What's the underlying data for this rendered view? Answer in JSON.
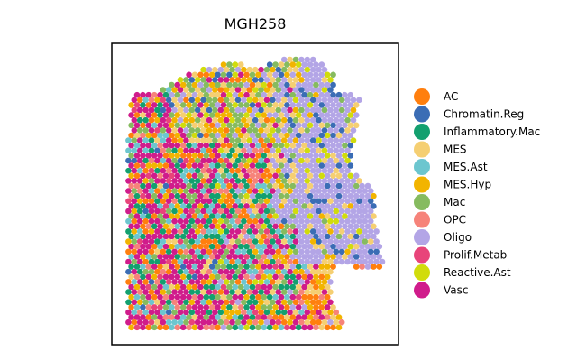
{
  "chart_data": {
    "type": "scatter",
    "title": "MGH258",
    "xlabel": "",
    "ylabel": "",
    "axis_ticks": "none",
    "grid": false,
    "legend": "right",
    "marker": "hexagonal spots",
    "categories": [
      {
        "name": "AC",
        "color": "#ff7f0e"
      },
      {
        "name": "Chromatin.Reg",
        "color": "#3b6db5"
      },
      {
        "name": "Inflammatory.Mac",
        "color": "#13a06f"
      },
      {
        "name": "MES",
        "color": "#f5cf72"
      },
      {
        "name": "MES.Ast",
        "color": "#6cc6cf"
      },
      {
        "name": "MES.Hyp",
        "color": "#f2b400"
      },
      {
        "name": "Mac",
        "color": "#86bb5f"
      },
      {
        "name": "OPC",
        "color": "#f6837a"
      },
      {
        "name": "Oligo",
        "color": "#b3a5e6"
      },
      {
        "name": "Prolif.Metab",
        "color": "#e8447a"
      },
      {
        "name": "Reactive.Ast",
        "color": "#d1dc0c"
      },
      {
        "name": "Vasc",
        "color": "#d01c8b"
      }
    ],
    "region_composition": [
      {
        "region": "left half",
        "dominant": [
          "Vasc",
          "Inflammatory.Mac",
          "AC",
          "MES.Ast",
          "MES.Hyp",
          "OPC"
        ]
      },
      {
        "region": "upper middle",
        "dominant": [
          "Mac",
          "MES",
          "MES.Hyp",
          "Reactive.Ast"
        ]
      },
      {
        "region": "right side",
        "dominant": [
          "Oligo",
          "Chromatin.Reg",
          "Reactive.Ast"
        ]
      },
      {
        "region": "lower middle",
        "dominant": [
          "Vasc",
          "Inflammatory.Mac",
          "AC",
          "OPC",
          "MES.Ast"
        ]
      }
    ]
  }
}
